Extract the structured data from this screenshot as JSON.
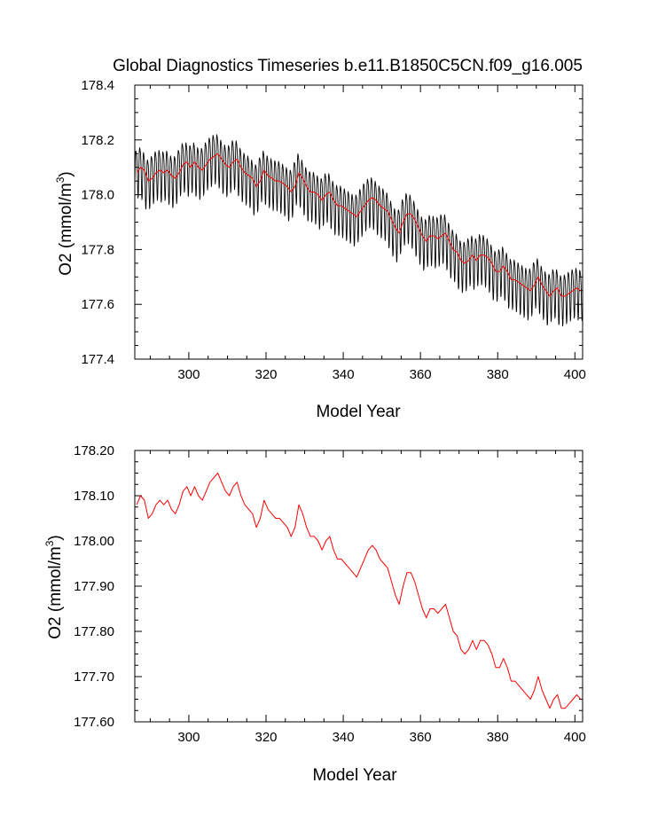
{
  "title": "Global Diagnostics Timeseries b.e11.B1850C5CN.f09_g16.005",
  "colors": {
    "monthly": "#000000",
    "annual": "#ff0000",
    "axes": "#000000"
  },
  "chart_data": [
    {
      "type": "line",
      "xlabel": "Model Year",
      "ylabel_main": "O2 (mmol/m",
      "ylabel_sup": "3",
      "ylabel_end": ")",
      "xlim": [
        286,
        402
      ],
      "ylim": [
        177.4,
        178.4
      ],
      "xticks": [
        300,
        320,
        340,
        360,
        380,
        400
      ],
      "xtick_labels": [
        "300",
        "320",
        "340",
        "360",
        "380",
        "400"
      ],
      "yticks": [
        177.4,
        177.6,
        177.8,
        178.0,
        178.2,
        178.4
      ],
      "ytick_labels": [
        "177.4",
        "177.6",
        "177.8",
        "178.0",
        "178.2",
        "178.4"
      ],
      "series": [
        {
          "name": "monthly",
          "color": "#000000",
          "seasonal_amplitude": 0.09,
          "samples_per_year": 12,
          "tracks": "annual"
        },
        {
          "name": "annual",
          "color": "#ff0000",
          "tracks": "annual"
        }
      ]
    },
    {
      "type": "line",
      "xlabel": "Model Year",
      "ylabel_main": "O2 (mmol/m",
      "ylabel_sup": "3",
      "ylabel_end": ")",
      "xlim": [
        286,
        402
      ],
      "ylim": [
        177.6,
        178.2
      ],
      "xticks": [
        300,
        320,
        340,
        360,
        380,
        400
      ],
      "xtick_labels": [
        "300",
        "320",
        "340",
        "360",
        "380",
        "400"
      ],
      "yticks": [
        177.6,
        177.7,
        177.8,
        177.9,
        178.0,
        178.1,
        178.2
      ],
      "ytick_labels": [
        "177.60",
        "177.70",
        "177.80",
        "177.90",
        "178.00",
        "178.10",
        "178.20"
      ],
      "series": [
        {
          "name": "annual",
          "color": "#ff0000",
          "tracks": "annual"
        }
      ]
    }
  ],
  "annual_series": {
    "start_year": 286,
    "values": [
      178.08,
      178.1,
      178.09,
      178.05,
      178.06,
      178.08,
      178.09,
      178.08,
      178.09,
      178.07,
      178.06,
      178.08,
      178.11,
      178.12,
      178.1,
      178.12,
      178.1,
      178.09,
      178.11,
      178.13,
      178.14,
      178.15,
      178.13,
      178.11,
      178.1,
      178.12,
      178.13,
      178.1,
      178.08,
      178.07,
      178.06,
      178.03,
      178.05,
      178.09,
      178.07,
      178.06,
      178.05,
      178.05,
      178.04,
      178.03,
      178.01,
      178.03,
      178.08,
      178.06,
      178.03,
      178.01,
      178.01,
      178.0,
      177.98,
      178.0,
      178.01,
      177.98,
      177.96,
      177.96,
      177.95,
      177.94,
      177.93,
      177.92,
      177.94,
      177.96,
      177.98,
      177.99,
      177.98,
      177.96,
      177.95,
      177.94,
      177.91,
      177.88,
      177.86,
      177.9,
      177.93,
      177.93,
      177.91,
      177.88,
      177.85,
      177.83,
      177.85,
      177.85,
      177.84,
      177.85,
      177.86,
      177.83,
      177.8,
      177.79,
      177.76,
      177.75,
      177.76,
      177.78,
      177.76,
      177.78,
      177.78,
      177.77,
      177.75,
      177.72,
      177.72,
      177.74,
      177.72,
      177.69,
      177.69,
      177.68,
      177.67,
      177.66,
      177.65,
      177.67,
      177.7,
      177.67,
      177.65,
      177.63,
      177.65,
      177.66,
      177.63,
      177.63,
      177.64,
      177.65,
      177.66,
      177.65
    ]
  }
}
